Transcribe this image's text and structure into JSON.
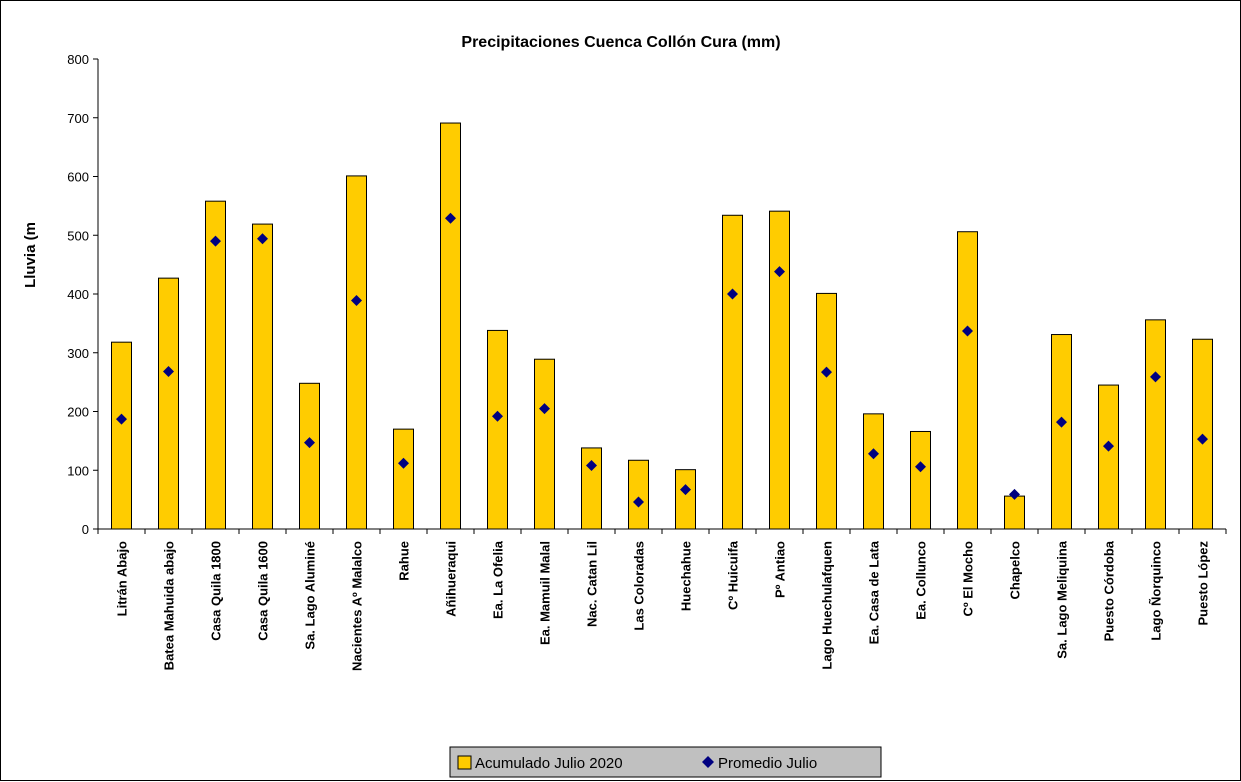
{
  "chart_data": {
    "type": "bar",
    "title": "Precipitaciones Cuenca Collón Cura (mm)",
    "xlabel": "",
    "ylabel": "Lluvia (m",
    "ylim": [
      0,
      800
    ],
    "yticks": [
      "0",
      "100",
      "200",
      "300",
      "400",
      "500",
      "600",
      "700",
      "800"
    ],
    "grid": false,
    "legend_position": "bottom",
    "categories": [
      "Litrán Abajo",
      "Batea Mahuida abajo",
      "Casa Quila 1800",
      "Casa Quila 1600",
      "Sa. Lago Aluminé",
      "Nacientes Aº Malalco",
      "Rahue",
      "Añihueraqui",
      "Ea. La Ofelia",
      "Ea. Mamuil Malal",
      "Nac. Catan Lil",
      "Las Coloradas",
      "Huechahue",
      "Cº Huicuifa",
      "Pº Antiao",
      "Lago Huechulafquen",
      "Ea. Casa de Lata",
      "Ea. Collunco",
      "Cº El Mocho",
      "Chapelco",
      "Sa. Lago Meliquina",
      "Puesto Córdoba",
      "Lago Ñorquinco",
      "Puesto López"
    ],
    "series": [
      {
        "name": "Acumulado Julio 2020",
        "kind": "bar",
        "color": "#FFCC00",
        "values": [
          318,
          427,
          558,
          519,
          248,
          601,
          170,
          691,
          338,
          289,
          138,
          117,
          101,
          534,
          541,
          401,
          196,
          166,
          506,
          56,
          331,
          245,
          356,
          323
        ]
      },
      {
        "name": "Promedio Julio",
        "kind": "marker",
        "color": "#000080",
        "values": [
          187,
          268,
          490,
          494,
          147,
          389,
          112,
          529,
          192,
          205,
          108,
          46,
          67,
          400,
          438,
          267,
          128,
          106,
          337,
          59,
          182,
          141,
          259,
          153
        ]
      }
    ]
  }
}
